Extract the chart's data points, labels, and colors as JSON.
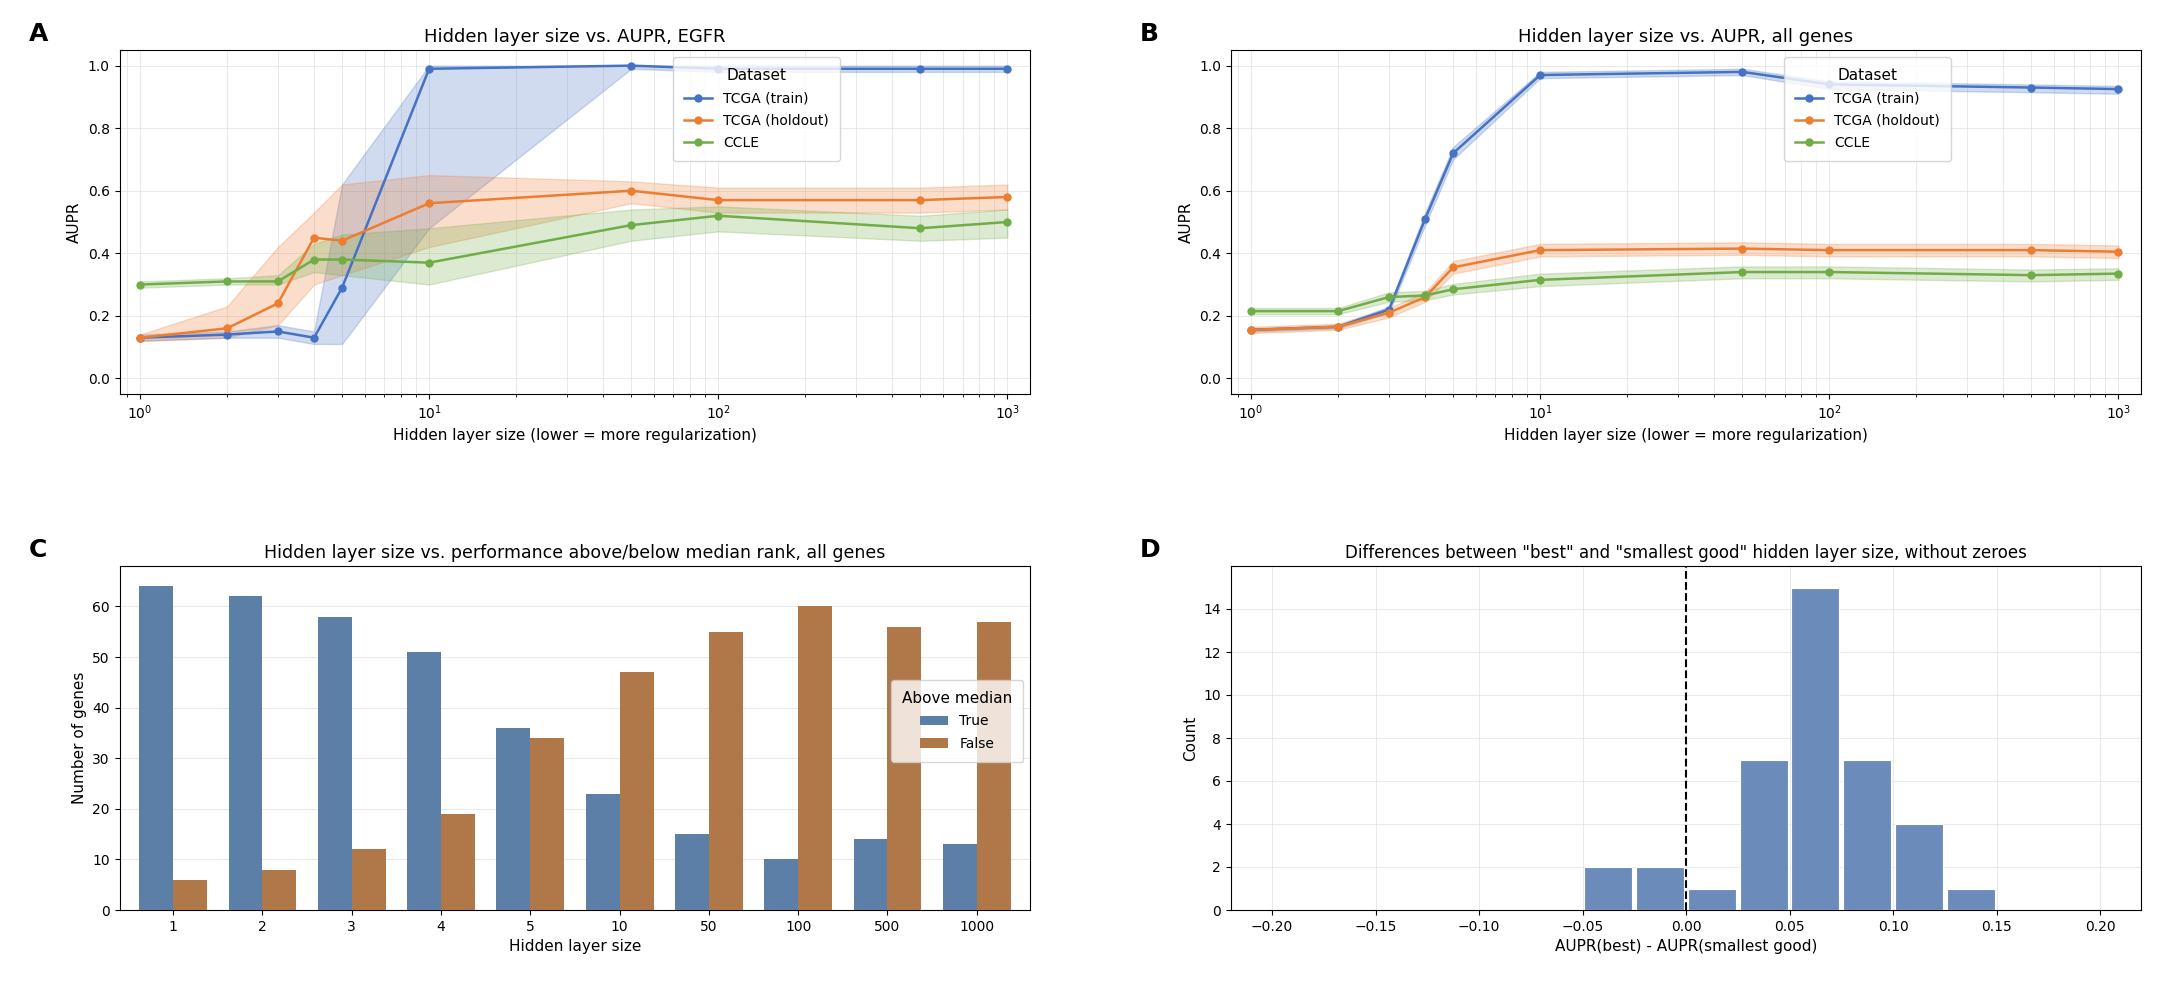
{
  "panel_A": {
    "title": "Hidden layer size vs. AUPR, EGFR",
    "xlabel": "Hidden layer size (lower = more regularization)",
    "ylabel": "AUPR",
    "x": [
      1,
      2,
      3,
      4,
      5,
      10,
      50,
      100,
      500,
      1000
    ],
    "tcga_train_mean": [
      0.13,
      0.14,
      0.15,
      0.13,
      0.29,
      0.99,
      1.0,
      0.99,
      0.99,
      0.99
    ],
    "tcga_train_lo": [
      0.12,
      0.13,
      0.13,
      0.11,
      0.11,
      0.48,
      0.99,
      0.98,
      0.98,
      0.98
    ],
    "tcga_train_hi": [
      0.14,
      0.15,
      0.17,
      0.15,
      0.62,
      1.0,
      1.0,
      1.0,
      1.0,
      1.0
    ],
    "tcga_hold_mean": [
      0.13,
      0.16,
      0.24,
      0.45,
      0.44,
      0.56,
      0.6,
      0.57,
      0.57,
      0.58
    ],
    "tcga_hold_lo": [
      0.12,
      0.13,
      0.17,
      0.3,
      0.33,
      0.42,
      0.56,
      0.53,
      0.53,
      0.54
    ],
    "tcga_hold_hi": [
      0.14,
      0.23,
      0.42,
      0.53,
      0.62,
      0.65,
      0.63,
      0.61,
      0.61,
      0.62
    ],
    "ccle_mean": [
      0.3,
      0.31,
      0.31,
      0.38,
      0.38,
      0.37,
      0.49,
      0.52,
      0.48,
      0.5
    ],
    "ccle_lo": [
      0.29,
      0.3,
      0.3,
      0.34,
      0.33,
      0.3,
      0.44,
      0.47,
      0.44,
      0.45
    ],
    "ccle_hi": [
      0.31,
      0.32,
      0.33,
      0.43,
      0.46,
      0.48,
      0.54,
      0.55,
      0.52,
      0.54
    ],
    "xlim": [
      0.85,
      1200
    ],
    "ylim": [
      -0.05,
      1.05
    ]
  },
  "panel_B": {
    "title": "Hidden layer size vs. AUPR, all genes",
    "xlabel": "Hidden layer size (lower = more regularization)",
    "ylabel": "AUPR",
    "x": [
      1,
      2,
      3,
      4,
      5,
      10,
      50,
      100,
      500,
      1000
    ],
    "tcga_train_mean": [
      0.155,
      0.165,
      0.22,
      0.51,
      0.72,
      0.97,
      0.98,
      0.94,
      0.93,
      0.925
    ],
    "tcga_train_lo": [
      0.15,
      0.16,
      0.21,
      0.49,
      0.7,
      0.96,
      0.97,
      0.925,
      0.915,
      0.91
    ],
    "tcga_train_hi": [
      0.16,
      0.17,
      0.23,
      0.53,
      0.74,
      0.98,
      0.99,
      0.95,
      0.94,
      0.935
    ],
    "tcga_hold_mean": [
      0.155,
      0.165,
      0.21,
      0.26,
      0.355,
      0.41,
      0.415,
      0.41,
      0.41,
      0.405
    ],
    "tcga_hold_lo": [
      0.145,
      0.155,
      0.195,
      0.245,
      0.335,
      0.39,
      0.395,
      0.39,
      0.39,
      0.385
    ],
    "tcga_hold_hi": [
      0.165,
      0.175,
      0.225,
      0.275,
      0.375,
      0.43,
      0.435,
      0.43,
      0.43,
      0.425
    ],
    "ccle_mean": [
      0.215,
      0.215,
      0.26,
      0.265,
      0.285,
      0.315,
      0.34,
      0.34,
      0.33,
      0.335
    ],
    "ccle_lo": [
      0.205,
      0.205,
      0.245,
      0.25,
      0.268,
      0.295,
      0.32,
      0.32,
      0.31,
      0.315
    ],
    "ccle_hi": [
      0.225,
      0.225,
      0.275,
      0.28,
      0.302,
      0.335,
      0.358,
      0.358,
      0.348,
      0.352
    ],
    "xlim": [
      0.85,
      1200
    ],
    "ylim": [
      -0.05,
      1.05
    ]
  },
  "panel_C": {
    "title": "Hidden layer size vs. performance above/below median rank, all genes",
    "xlabel": "Hidden layer size",
    "ylabel": "Number of genes",
    "categories": [
      "1",
      "2",
      "3",
      "4",
      "5",
      "10",
      "50",
      "100",
      "500",
      "1000"
    ],
    "true_vals": [
      64,
      62,
      58,
      51,
      36,
      23,
      15,
      10,
      14,
      13
    ],
    "false_vals": [
      6,
      8,
      12,
      19,
      34,
      47,
      55,
      60,
      56,
      57
    ],
    "color_true": "#5b7fa6",
    "color_false": "#b07848",
    "ylim": [
      0,
      68
    ]
  },
  "panel_D": {
    "title": "Differences between \"best\" and \"smallest good\" hidden layer size, without zeroes",
    "xlabel": "AUPR(best) - AUPR(smallest good)",
    "ylabel": "Count",
    "bin_edges": [
      -0.2,
      -0.175,
      -0.15,
      -0.125,
      -0.1,
      -0.075,
      -0.05,
      -0.025,
      0.0,
      0.025,
      0.05,
      0.075,
      0.1,
      0.125,
      0.15,
      0.175,
      0.2
    ],
    "bin_counts": [
      0,
      0,
      0,
      0,
      0,
      0,
      2,
      2,
      1,
      7,
      15,
      7,
      4,
      1,
      0,
      0
    ],
    "vline_x": 0.0,
    "xlim": [
      -0.22,
      0.22
    ],
    "ylim": [
      0,
      16
    ],
    "bar_color": "#6b8cba",
    "bar_edge_color": "white"
  },
  "colors": {
    "tcga_train": "#4472c4",
    "tcga_holdout": "#ed7d31",
    "ccle": "#70ad47"
  }
}
